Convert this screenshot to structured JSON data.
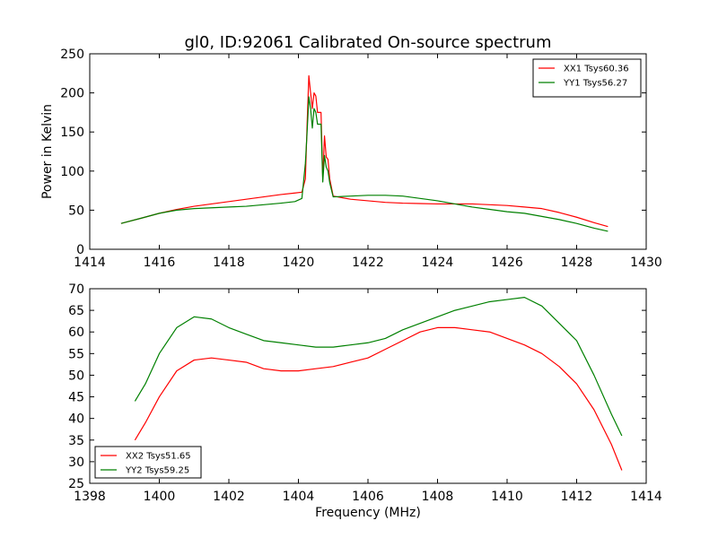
{
  "title": "gl0, ID:92061 Calibrated On-source spectrum",
  "chart_data": [
    {
      "type": "line",
      "title": "gl0, ID:92061 Calibrated On-source spectrum",
      "xlabel": "",
      "ylabel": "Power in Kelvin",
      "xlim": [
        1414,
        1430
      ],
      "ylim": [
        0,
        250
      ],
      "xticks": [
        1414,
        1416,
        1418,
        1420,
        1422,
        1424,
        1426,
        1428,
        1430
      ],
      "yticks": [
        0,
        50,
        100,
        150,
        200,
        250
      ],
      "legend_position": "top-right",
      "grid": false,
      "series": [
        {
          "name": "XX1 Tsys60.36",
          "color": "#ff0000",
          "points": [
            [
              1414.9,
              33
            ],
            [
              1415.5,
              40
            ],
            [
              1416.0,
              46
            ],
            [
              1416.5,
              51
            ],
            [
              1417.0,
              55
            ],
            [
              1417.5,
              58
            ],
            [
              1418.0,
              61
            ],
            [
              1418.5,
              64
            ],
            [
              1419.0,
              67
            ],
            [
              1419.5,
              70
            ],
            [
              1419.9,
              72
            ],
            [
              1420.1,
              73
            ],
            [
              1420.2,
              90
            ],
            [
              1420.25,
              160
            ],
            [
              1420.3,
              222
            ],
            [
              1420.35,
              200
            ],
            [
              1420.4,
              180
            ],
            [
              1420.45,
              200
            ],
            [
              1420.5,
              196
            ],
            [
              1420.55,
              175
            ],
            [
              1420.65,
              175
            ],
            [
              1420.7,
              90
            ],
            [
              1420.75,
              145
            ],
            [
              1420.8,
              118
            ],
            [
              1420.85,
              115
            ],
            [
              1420.9,
              90
            ],
            [
              1421.0,
              68
            ],
            [
              1421.5,
              64
            ],
            [
              1422.0,
              62
            ],
            [
              1422.5,
              60
            ],
            [
              1423.0,
              59
            ],
            [
              1423.5,
              58.5
            ],
            [
              1424.0,
              58
            ],
            [
              1424.5,
              58
            ],
            [
              1425.0,
              58
            ],
            [
              1425.5,
              57
            ],
            [
              1426.0,
              56
            ],
            [
              1426.5,
              54
            ],
            [
              1427.0,
              52
            ],
            [
              1427.5,
              47
            ],
            [
              1428.0,
              41
            ],
            [
              1428.5,
              34
            ],
            [
              1428.9,
              29
            ]
          ]
        },
        {
          "name": "YY1 Tsys56.27",
          "color": "#008000",
          "points": [
            [
              1414.9,
              33
            ],
            [
              1415.5,
              40
            ],
            [
              1416.0,
              46
            ],
            [
              1416.5,
              50
            ],
            [
              1417.0,
              52
            ],
            [
              1417.5,
              53
            ],
            [
              1418.0,
              54
            ],
            [
              1418.5,
              55
            ],
            [
              1419.0,
              57
            ],
            [
              1419.5,
              59
            ],
            [
              1419.9,
              61
            ],
            [
              1420.1,
              65
            ],
            [
              1420.2,
              110
            ],
            [
              1420.25,
              150
            ],
            [
              1420.3,
              195
            ],
            [
              1420.35,
              180
            ],
            [
              1420.4,
              155
            ],
            [
              1420.45,
              180
            ],
            [
              1420.5,
              175
            ],
            [
              1420.55,
              160
            ],
            [
              1420.65,
              160
            ],
            [
              1420.7,
              86
            ],
            [
              1420.75,
              120
            ],
            [
              1420.8,
              105
            ],
            [
              1420.85,
              100
            ],
            [
              1420.9,
              85
            ],
            [
              1421.0,
              67
            ],
            [
              1421.5,
              68
            ],
            [
              1422.0,
              69
            ],
            [
              1422.5,
              69
            ],
            [
              1423.0,
              68
            ],
            [
              1423.5,
              65
            ],
            [
              1424.0,
              62
            ],
            [
              1424.5,
              58
            ],
            [
              1425.0,
              54
            ],
            [
              1425.5,
              51
            ],
            [
              1426.0,
              48
            ],
            [
              1426.5,
              46
            ],
            [
              1427.0,
              42
            ],
            [
              1427.5,
              38
            ],
            [
              1428.0,
              33
            ],
            [
              1428.5,
              27
            ],
            [
              1428.9,
              23
            ]
          ]
        }
      ]
    },
    {
      "type": "line",
      "title": "",
      "xlabel": "Frequency (MHz)",
      "ylabel": "",
      "xlim": [
        1398,
        1414
      ],
      "ylim": [
        25,
        70
      ],
      "xticks": [
        1398,
        1400,
        1402,
        1404,
        1406,
        1408,
        1410,
        1412,
        1414
      ],
      "yticks": [
        25,
        30,
        35,
        40,
        45,
        50,
        55,
        60,
        65,
        70
      ],
      "legend_position": "bottom-left",
      "grid": false,
      "series": [
        {
          "name": "XX2 Tsys51.65",
          "color": "#ff0000",
          "points": [
            [
              1399.3,
              35
            ],
            [
              1399.6,
              39
            ],
            [
              1400.0,
              45
            ],
            [
              1400.5,
              51
            ],
            [
              1401.0,
              53.5
            ],
            [
              1401.5,
              54
            ],
            [
              1402.0,
              53.5
            ],
            [
              1402.5,
              53
            ],
            [
              1403.0,
              51.5
            ],
            [
              1403.5,
              51
            ],
            [
              1404.0,
              51
            ],
            [
              1404.5,
              51.5
            ],
            [
              1405.0,
              52
            ],
            [
              1405.5,
              53
            ],
            [
              1406.0,
              54
            ],
            [
              1406.5,
              56
            ],
            [
              1407.0,
              58
            ],
            [
              1407.5,
              60
            ],
            [
              1408.0,
              61
            ],
            [
              1408.5,
              61
            ],
            [
              1409.0,
              60.5
            ],
            [
              1409.5,
              60
            ],
            [
              1410.0,
              58.5
            ],
            [
              1410.5,
              57
            ],
            [
              1411.0,
              55
            ],
            [
              1411.5,
              52
            ],
            [
              1412.0,
              48
            ],
            [
              1412.5,
              42
            ],
            [
              1413.0,
              34
            ],
            [
              1413.3,
              28
            ]
          ]
        },
        {
          "name": "YY2 Tsys59.25",
          "color": "#008000",
          "points": [
            [
              1399.3,
              44
            ],
            [
              1399.6,
              48
            ],
            [
              1400.0,
              55
            ],
            [
              1400.5,
              61
            ],
            [
              1401.0,
              63.5
            ],
            [
              1401.5,
              63
            ],
            [
              1402.0,
              61
            ],
            [
              1402.5,
              59.5
            ],
            [
              1403.0,
              58
            ],
            [
              1403.5,
              57.5
            ],
            [
              1404.0,
              57
            ],
            [
              1404.5,
              56.5
            ],
            [
              1405.0,
              56.5
            ],
            [
              1405.5,
              57
            ],
            [
              1406.0,
              57.5
            ],
            [
              1406.5,
              58.5
            ],
            [
              1407.0,
              60.5
            ],
            [
              1407.5,
              62
            ],
            [
              1408.0,
              63.5
            ],
            [
              1408.5,
              65
            ],
            [
              1409.0,
              66
            ],
            [
              1409.5,
              67
            ],
            [
              1410.0,
              67.5
            ],
            [
              1410.5,
              68
            ],
            [
              1411.0,
              66
            ],
            [
              1411.5,
              62
            ],
            [
              1412.0,
              58
            ],
            [
              1412.5,
              50
            ],
            [
              1413.0,
              41
            ],
            [
              1413.3,
              36
            ]
          ]
        }
      ]
    }
  ]
}
